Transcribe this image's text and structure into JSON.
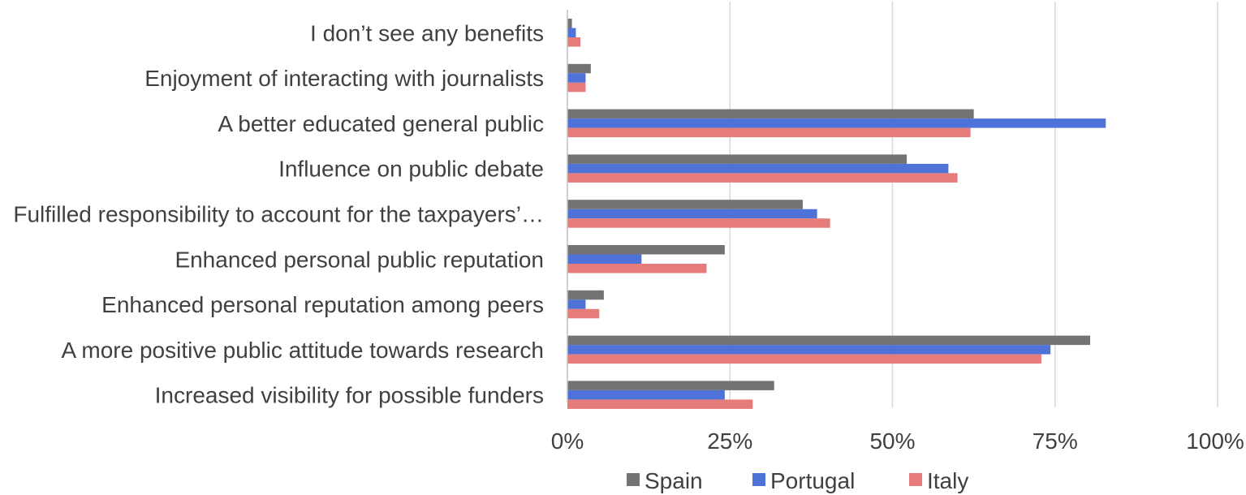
{
  "chart_data": {
    "type": "bar",
    "orientation": "horizontal",
    "title": "",
    "xlabel": "",
    "ylabel": "",
    "xlim": [
      0,
      100
    ],
    "grid": true,
    "legend_position": "bottom",
    "categories": [
      "I don’t see any benefits",
      "Enjoyment of interacting with journalists",
      "A better educated general public",
      "Influence on public debate",
      "Fulfilled responsibility to account for the taxpayers’…",
      "Enhanced personal public reputation",
      "Enhanced personal reputation among peers",
      "A more positive public attitude towards research",
      "Increased visibility for possible funders"
    ],
    "ticks": [
      0,
      25,
      50,
      75,
      100
    ],
    "tick_labels": [
      "0%",
      "25%",
      "50%",
      "75%",
      "100%"
    ],
    "series": [
      {
        "name": "Spain",
        "color": "#737373",
        "values": [
          0.7,
          3.6,
          62.5,
          52.2,
          36.2,
          24.2,
          5.6,
          80.4,
          31.8
        ]
      },
      {
        "name": "Portugal",
        "color": "#4F72D9",
        "values": [
          1.3,
          2.8,
          82.8,
          58.6,
          38.4,
          11.4,
          2.8,
          74.3,
          24.2
        ]
      },
      {
        "name": "Italy",
        "color": "#E57C7A",
        "values": [
          2.0,
          2.8,
          62.0,
          60.0,
          40.4,
          21.4,
          4.9,
          72.9,
          28.5
        ]
      }
    ]
  }
}
